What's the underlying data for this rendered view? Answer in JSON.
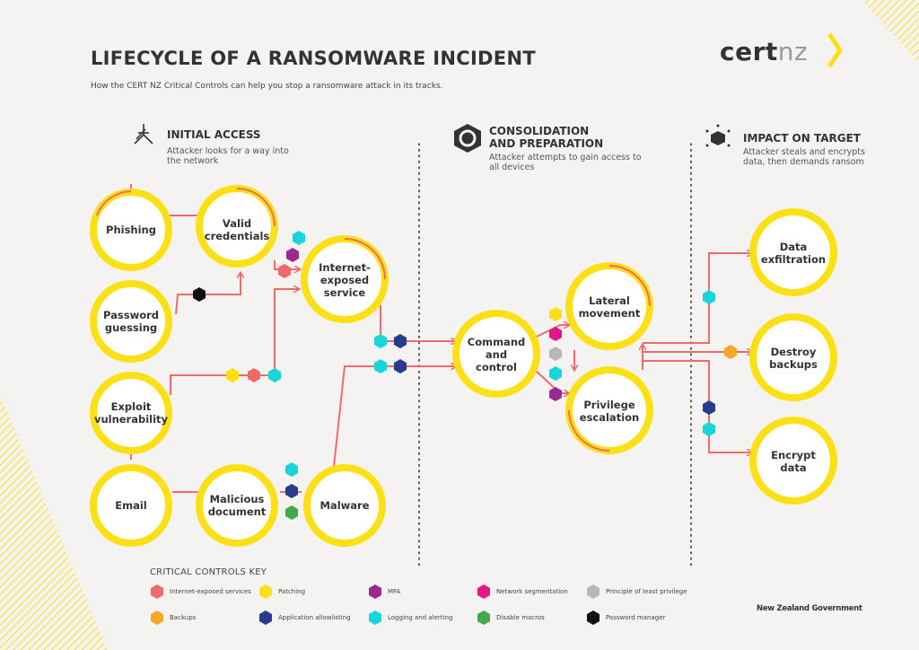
{
  "header": {
    "title": "LIFECYCLE OF A RANSOMWARE INCIDENT",
    "subtitle": "How the CERT NZ Critical Controls can help you stop a ransomware attack in its tracks.",
    "logo": {
      "part1": "cert",
      "part2": "nz"
    }
  },
  "sections": {
    "initial_access": {
      "title": "INITIAL ACCESS",
      "desc_line1": "Attacker looks for a way into",
      "desc_line2": "the network",
      "icon": "network-fork-icon"
    },
    "consolidation": {
      "title_line1": "CONSOLIDATION",
      "title_line2": "AND PREPARATION",
      "desc_line1": "Attacker attempts to gain access to",
      "desc_line2": "all devices",
      "icon": "hexagon-ring-icon"
    },
    "impact": {
      "title": "IMPACT ON TARGET",
      "desc_line1": "Attacker steals and encrypts",
      "desc_line2": "data, then demands ransom",
      "icon": "cube-burst-icon"
    }
  },
  "nodes": {
    "phishing": {
      "line1": "Phishing",
      "line2": ""
    },
    "valid_credentials": {
      "line1": "Valid",
      "line2": "credentials"
    },
    "password_guessing": {
      "line1": "Password",
      "line2": "guessing"
    },
    "exploit_vulnerability": {
      "line1": "Exploit",
      "line2": "vulnerability"
    },
    "email": {
      "line1": "Email",
      "line2": ""
    },
    "malicious_document": {
      "line1": "Malicious",
      "line2": "document"
    },
    "malware": {
      "line1": "Malware",
      "line2": ""
    },
    "internet_exposed_service": {
      "line1": "Internet-",
      "line2": "exposed",
      "line3": "service"
    },
    "command_and_control": {
      "line1": "Command",
      "line2": "and",
      "line3": "control"
    },
    "lateral_movement": {
      "line1": "Lateral",
      "line2": "movement"
    },
    "privilege_escalation": {
      "line1": "Privilege",
      "line2": "escalation"
    },
    "data_exfiltration": {
      "line1": "Data",
      "line2": "exfiltration"
    },
    "destroy_backups": {
      "line1": "Destroy",
      "line2": "backups"
    },
    "encrypt_data": {
      "line1": "Encrypt",
      "line2": "data"
    }
  },
  "key": {
    "title": "CRITICAL CONTROLS KEY",
    "items": {
      "internet_exposed_services": {
        "label": "Internet-exposed services",
        "color": "#ef6b6b"
      },
      "patching": {
        "label": "Patching",
        "color": "#fbe016"
      },
      "mfa": {
        "label": "MFA",
        "color": "#9b2a8f"
      },
      "network_segmentation": {
        "label": "Network segmentation",
        "color": "#e5168c"
      },
      "least_privilege": {
        "label": "Principle of least privilege",
        "color": "#b9b7b5"
      },
      "backups": {
        "label": "Backups",
        "color": "#f8a72a"
      },
      "app_allowlisting": {
        "label": "Application allowlisting",
        "color": "#283b8c"
      },
      "logging_alerting": {
        "label": "Logging and alerting",
        "color": "#16d6da"
      },
      "disable_macros": {
        "label": "Disable macros",
        "color": "#43a84a"
      },
      "password_manager": {
        "label": "Password manager",
        "color": "#111111"
      }
    }
  },
  "footer": {
    "government": "New Zealand Government"
  },
  "colors": {
    "accent_yellow": "#fbe016",
    "flow_line": "#ef6b6b",
    "divider": "#333333"
  }
}
